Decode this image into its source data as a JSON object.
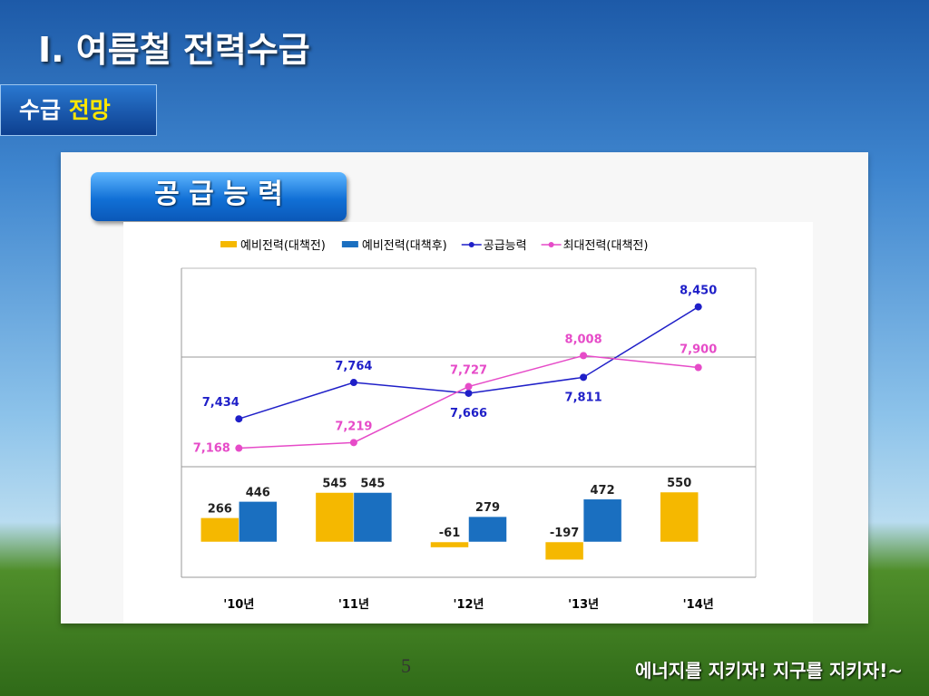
{
  "title": "Ⅰ. 여름철 전력수급",
  "section": {
    "part1": "수급",
    "part2": "전망"
  },
  "box_title": "공 급 능 력",
  "page_number": "5",
  "footer": "에너지를 지키자! 지구를 지키자!~",
  "chart_data": {
    "type": "combo",
    "categories": [
      "'10년",
      "'11년",
      "'12년",
      "'13년",
      "'14년"
    ],
    "ylim": [
      7000,
      8800
    ],
    "y2lim": [
      -390,
      830
    ],
    "series": [
      {
        "name": "예비전력(대책전)",
        "type": "bar",
        "axis": "y2",
        "color": "#f5b800",
        "values": [
          266,
          545,
          -61,
          -197,
          550
        ]
      },
      {
        "name": "예비전력(대책후)",
        "type": "bar",
        "axis": "y2",
        "color": "#1a6fc0",
        "values": [
          446,
          545,
          279,
          472,
          null
        ]
      },
      {
        "name": "공급능력",
        "type": "line",
        "color": "#1f1fc8",
        "values": [
          7434,
          7764,
          7666,
          7811,
          8450
        ],
        "value_labels": [
          "7,434",
          "7,764",
          "7,666",
          "7,811",
          "8,450"
        ]
      },
      {
        "name": "최대전력(대책전)",
        "type": "line",
        "color": "#e64bc8",
        "values": [
          7168,
          7219,
          7727,
          8008,
          7900
        ],
        "value_labels": [
          "7,168",
          "7,219",
          "7,727",
          "8,008",
          "7,900"
        ]
      }
    ]
  }
}
